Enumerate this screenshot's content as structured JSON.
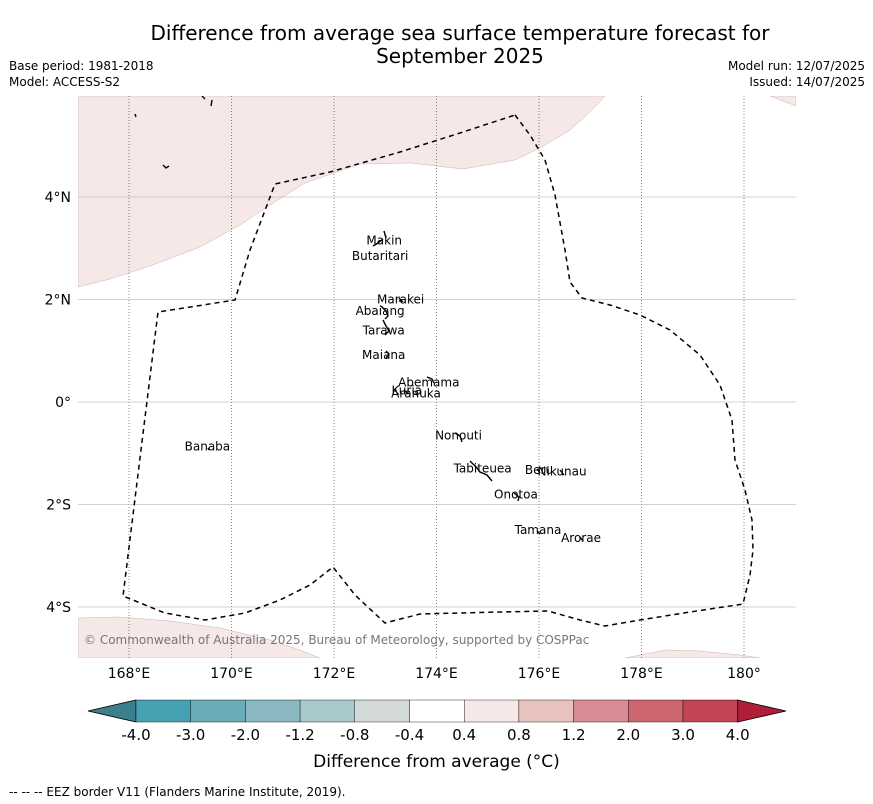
{
  "title_line1": "Difference from average sea surface temperature forecast for",
  "title_line2": "September 2025",
  "base_period": "Base period: 1981-2018",
  "model": "Model: ACCESS-S2",
  "model_run": "Model run: 12/07/2025",
  "issued": "Issued: 14/07/2025",
  "copyright": "© Commonwealth of Australia 2025, Bureau of Meteorology, supported by COSPPac",
  "footer": "--  --  -- EEZ border V11 (Flanders Marine Institute, 2019).",
  "lon_ticks": [
    "168°E",
    "170°E",
    "172°E",
    "174°E",
    "176°E",
    "178°E",
    "180°"
  ],
  "lat_ticks": [
    "4°N",
    "2°N",
    "0°",
    "2°S",
    "4°S"
  ],
  "islands": [
    {
      "name": "Makin",
      "lon": 172.98,
      "lat": 3.15
    },
    {
      "name": "Butaritari",
      "lon": 172.9,
      "lat": 2.85
    },
    {
      "name": "Marakei",
      "lon": 173.3,
      "lat": 2.0
    },
    {
      "name": "Abaiang",
      "lon": 172.9,
      "lat": 1.78
    },
    {
      "name": "Tarawa",
      "lon": 172.97,
      "lat": 1.4
    },
    {
      "name": "Maiana",
      "lon": 172.97,
      "lat": 0.92
    },
    {
      "name": "Abemama",
      "lon": 173.85,
      "lat": 0.38
    },
    {
      "name": "Kuria",
      "lon": 173.42,
      "lat": 0.22
    },
    {
      "name": "Aranuka",
      "lon": 173.6,
      "lat": 0.17
    },
    {
      "name": "Banaba",
      "lon": 169.53,
      "lat": -0.87
    },
    {
      "name": "Nonouti",
      "lon": 174.43,
      "lat": -0.65
    },
    {
      "name": "Tabiteuea",
      "lon": 174.9,
      "lat": -1.3
    },
    {
      "name": "Beru",
      "lon": 176.0,
      "lat": -1.33
    },
    {
      "name": "Nikunau",
      "lon": 176.45,
      "lat": -1.36
    },
    {
      "name": "Onotoa",
      "lon": 175.55,
      "lat": -1.8
    },
    {
      "name": "Tamana",
      "lon": 175.98,
      "lat": -2.5
    },
    {
      "name": "Arorae",
      "lon": 176.82,
      "lat": -2.65
    }
  ],
  "colorbar": {
    "title": "Difference from average (°C)",
    "labels": [
      "-4.0",
      "-3.0",
      "-2.0",
      "-1.2",
      "-0.8",
      "-0.4",
      "0.4",
      "0.8",
      "1.2",
      "2.0",
      "3.0",
      "4.0"
    ],
    "colors": [
      "#3d808d",
      "#46a1b2",
      "#6aabb8",
      "#89b8c1",
      "#a9c8cc",
      "#d3d9d9",
      "#ffffff",
      "#f6e8e6",
      "#e8c3be",
      "#d88b92",
      "#cd6670",
      "#c24455",
      "#b01f3a"
    ]
  },
  "colors": {
    "warm_shading": "#f5e8e7",
    "grid": "#b0b0b0",
    "eez": "#000000"
  }
}
